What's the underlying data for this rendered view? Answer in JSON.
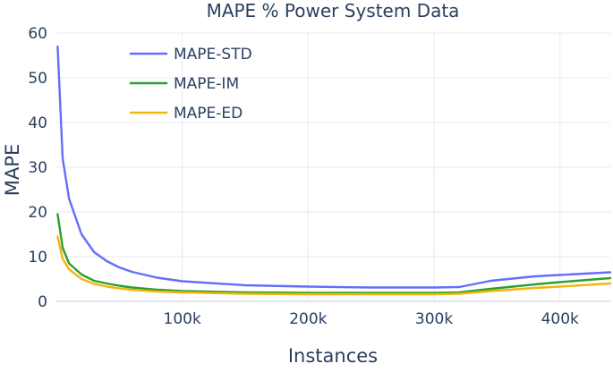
{
  "chart_data": {
    "type": "line",
    "title": "MAPE % Power System Data",
    "xlabel": "Instances",
    "ylabel": "MAPE",
    "xlim": [
      0,
      440000
    ],
    "ylim": [
      0,
      60
    ],
    "xticks": [
      100000,
      200000,
      300000,
      400000
    ],
    "xtick_labels": [
      "100k",
      "200k",
      "300k",
      "400k"
    ],
    "yticks": [
      0,
      10,
      20,
      30,
      40,
      50,
      60
    ],
    "ytick_labels": [
      "0",
      "10",
      "20",
      "30",
      "40",
      "50",
      "60"
    ],
    "grid": true,
    "legend_position": "top-left",
    "x": [
      1000,
      5000,
      10000,
      20000,
      30000,
      40000,
      50000,
      60000,
      80000,
      100000,
      150000,
      200000,
      250000,
      300000,
      320000,
      345000,
      380000,
      400000,
      440000
    ],
    "series": [
      {
        "name": "MAPE-STD",
        "color": "#636efa",
        "values": [
          57,
          32,
          23,
          15,
          11,
          9,
          7.6,
          6.6,
          5.3,
          4.5,
          3.6,
          3.3,
          3.1,
          3.1,
          3.2,
          4.6,
          5.6,
          5.9,
          6.5
        ]
      },
      {
        "name": "MAPE-IM",
        "color": "#2ca02c",
        "values": [
          19.5,
          12,
          8.5,
          6,
          4.6,
          4,
          3.5,
          3.1,
          2.6,
          2.3,
          2.0,
          1.9,
          1.9,
          1.9,
          2.0,
          2.8,
          3.8,
          4.3,
          5.2
        ]
      },
      {
        "name": "MAPE-ED",
        "color": "#f2b50f",
        "values": [
          14.5,
          9.5,
          7.2,
          5,
          3.9,
          3.3,
          2.9,
          2.6,
          2.2,
          2.0,
          1.7,
          1.6,
          1.6,
          1.6,
          1.7,
          2.3,
          3.0,
          3.3,
          4.0
        ]
      }
    ]
  }
}
